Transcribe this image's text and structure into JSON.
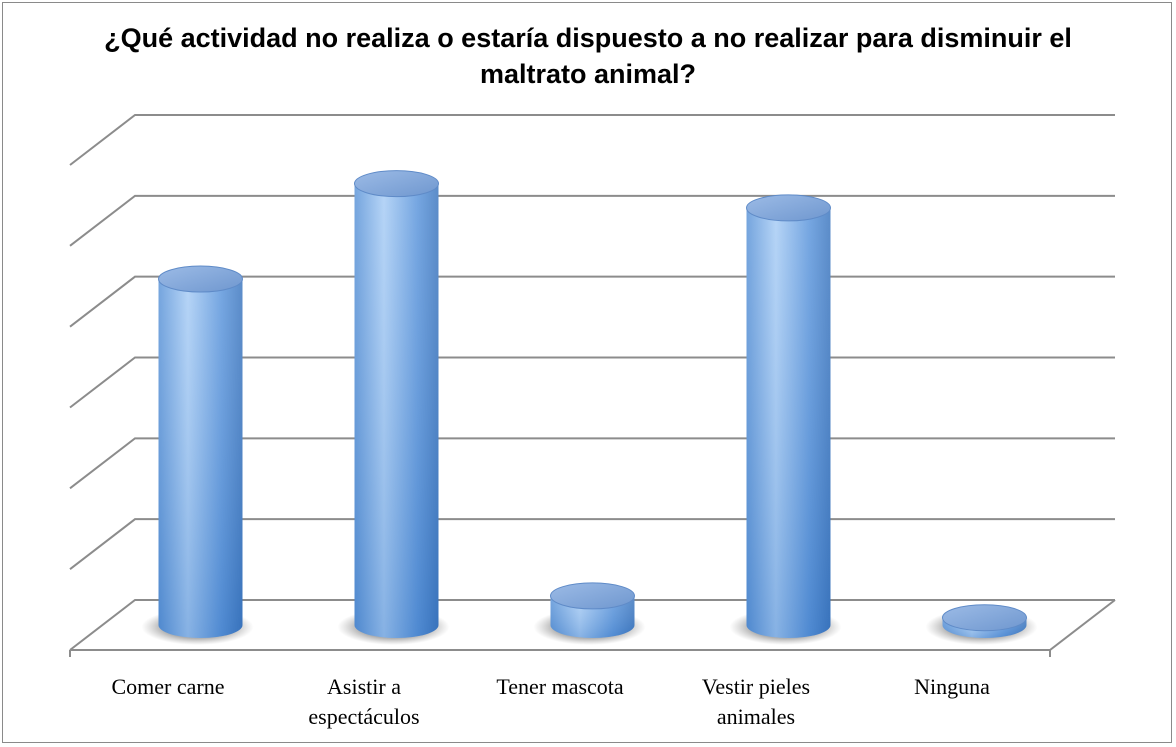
{
  "chart_data": {
    "type": "bar3d_cylinder",
    "title": "¿Qué actividad no realiza o estaría dispuesto a no realizar para disminuir el maltrato animal?",
    "categories": [
      "Comer carne",
      "Asistir a espectáculos",
      "Tener mascota",
      "Vestir pieles animales",
      "Ninguna"
    ],
    "values": [
      4.28,
      5.46,
      0.36,
      5.16,
      0.09
    ],
    "color": "#5b9bd5",
    "ylim": [
      0,
      6
    ],
    "yticks": [
      0,
      1,
      2,
      3,
      4,
      5,
      6
    ],
    "grid": true
  }
}
